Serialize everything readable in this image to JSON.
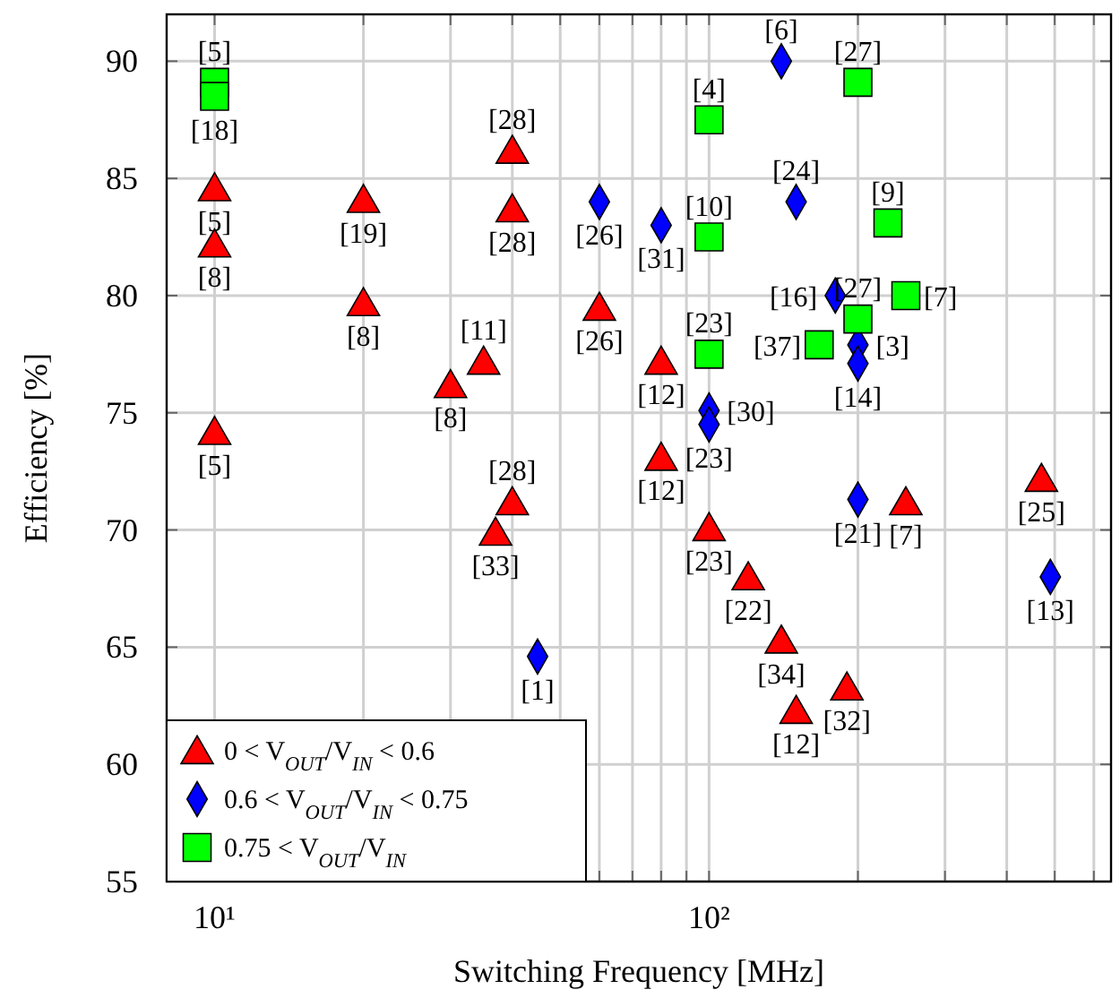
{
  "chart_data": {
    "type": "scatter",
    "xlabel": "Switching Frequency [MHz]",
    "ylabel": "Efficiency [%]",
    "log": "x",
    "grid": true,
    "legend": "bottom left",
    "xlim": [
      8,
      650
    ],
    "ylim": [
      55,
      92
    ],
    "xticks": [
      {
        "value": 10,
        "label": "10¹"
      },
      {
        "value": 20,
        "label": null
      },
      {
        "value": 30,
        "label": null
      },
      {
        "value": 40,
        "label": null
      },
      {
        "value": 50,
        "label": null
      },
      {
        "value": 60,
        "label": null
      },
      {
        "value": 70,
        "label": null
      },
      {
        "value": 80,
        "label": null
      },
      {
        "value": 90,
        "label": null
      },
      {
        "value": 100,
        "label": "10²"
      },
      {
        "value": 200,
        "label": null
      },
      {
        "value": 300,
        "label": null
      },
      {
        "value": 400,
        "label": null
      },
      {
        "value": 500,
        "label": null
      },
      {
        "value": 600,
        "label": null
      }
    ],
    "yticks": [
      55,
      60,
      65,
      70,
      75,
      80,
      85,
      90
    ],
    "series": [
      {
        "name": "0 < V$_{OUT}$/V$_{IN}$ < 0.6",
        "color": "#ff0000",
        "marker": "triangle",
        "x": [
          10,
          10,
          10,
          20,
          20,
          30,
          35,
          40,
          40,
          60,
          40,
          37,
          80,
          80,
          100,
          120,
          140,
          150,
          190,
          250,
          470
        ],
        "values": [
          84.6,
          82.2,
          74.2,
          84.1,
          79.7,
          76.2,
          77.2,
          86.2,
          83.7,
          79.5,
          71.2,
          69.9,
          77.2,
          73.1,
          70.1,
          68,
          65.3,
          62.3,
          63.3,
          71.2,
          72.2
        ]
      },
      {
        "name": "0.6 < V$_{OUT}$/V$_{IN}$ < 0.75",
        "color": "#0000ff",
        "marker": "diamond",
        "x": [
          45,
          60,
          80,
          140,
          150,
          180,
          200,
          200,
          100,
          100,
          200,
          490
        ],
        "values": [
          64.6,
          84,
          83,
          90,
          84,
          80,
          77.9,
          77.1,
          75.1,
          74.5,
          71.3,
          68
        ]
      },
      {
        "name": "0.75 < V$_{OUT}$/V$_{IN}$",
        "color": "#00ff00",
        "marker": "square",
        "x": [
          10,
          10,
          100,
          200,
          100,
          230,
          250,
          200,
          167,
          100
        ],
        "values": [
          89.1,
          88.5,
          87.5,
          89.1,
          82.5,
          83.1,
          80,
          79,
          77.9,
          77.5
        ]
      }
    ],
    "annotations": [
      {
        "text": "[5]",
        "x": 10,
        "y": 84.6
      },
      {
        "text": "[8]",
        "x": 10,
        "y": 82.2
      },
      {
        "text": "[5]",
        "x": 10,
        "y": 74.2
      },
      {
        "text": "[19]",
        "x": 20,
        "y": 84.1
      },
      {
        "text": "[8]",
        "x": 20,
        "y": 79.7
      },
      {
        "text": "[8]",
        "x": 30,
        "y": 76.2
      },
      {
        "text": "[11]",
        "x": 35,
        "y": 77.2
      },
      {
        "text": "[28]",
        "x": 40,
        "y": 86.2
      },
      {
        "text": "[28]",
        "x": 40,
        "y": 83.7
      },
      {
        "text": "[26]",
        "x": 60,
        "y": 79.5
      },
      {
        "text": "[28]",
        "x": 40,
        "y": 71.2
      },
      {
        "text": "[33]",
        "x": 37,
        "y": 69.9
      },
      {
        "text": "[12]",
        "x": 80,
        "y": 77.2
      },
      {
        "text": "[12]",
        "x": 80,
        "y": 73.1
      },
      {
        "text": "[23]",
        "x": 100,
        "y": 70.1
      },
      {
        "text": "[22]",
        "x": 120,
        "y": 68
      },
      {
        "text": "[34]",
        "x": 140,
        "y": 65.3
      },
      {
        "text": "[12]",
        "x": 150,
        "y": 62.3
      },
      {
        "text": "[32]",
        "x": 190,
        "y": 63.3
      },
      {
        "text": "[7]",
        "x": 250,
        "y": 71.2
      },
      {
        "text": "[25]",
        "x": 470,
        "y": 72.2
      },
      {
        "text": "[1]",
        "x": 45,
        "y": 64.6
      },
      {
        "text": "[26]",
        "x": 60,
        "y": 84
      },
      {
        "text": "[31]",
        "x": 80,
        "y": 83
      },
      {
        "text": "[6]",
        "x": 140,
        "y": 90
      },
      {
        "text": "[24]",
        "x": 150,
        "y": 84
      },
      {
        "text": "[16]",
        "x": 180,
        "y": 80
      },
      {
        "text": "[3]",
        "x": 200,
        "y": 77.9
      },
      {
        "text": "[14]",
        "x": 200,
        "y": 77.1
      },
      {
        "text": "[30]",
        "x": 100,
        "y": 75.1
      },
      {
        "text": "[23]",
        "x": 100,
        "y": 74.5
      },
      {
        "text": "[21]",
        "x": 200,
        "y": 71.3
      },
      {
        "text": "[13]",
        "x": 490,
        "y": 68
      },
      {
        "text": "[5]",
        "x": 10,
        "y": 89.1
      },
      {
        "text": "[18]",
        "x": 10,
        "y": 88.5
      },
      {
        "text": "[4]",
        "x": 100,
        "y": 87.5
      },
      {
        "text": "[27]",
        "x": 200,
        "y": 89.1
      },
      {
        "text": "[10]",
        "x": 100,
        "y": 82.5
      },
      {
        "text": "[9]",
        "x": 230,
        "y": 83.1
      },
      {
        "text": "[7]",
        "x": 250,
        "y": 80
      },
      {
        "text": "[27]",
        "x": 200,
        "y": 79
      },
      {
        "text": "[37]",
        "x": 167,
        "y": 77.9
      },
      {
        "text": "[23]",
        "x": 100,
        "y": 77.5
      }
    ]
  }
}
